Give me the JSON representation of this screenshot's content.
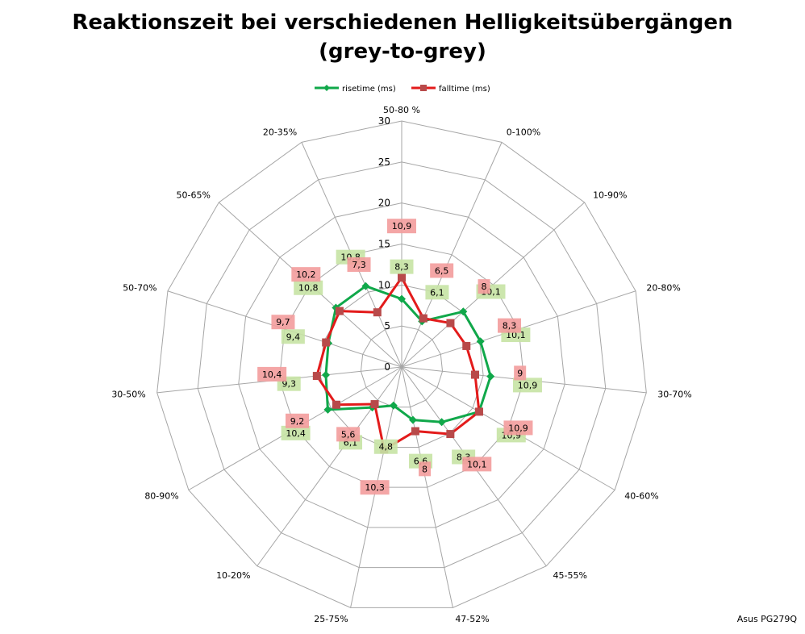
{
  "title_line1": "Reaktionszeit bei verschiedenen Helligkeitsübergängen",
  "title_line2": "(grey-to-grey)",
  "watermark": "Asus PG279Q",
  "chart_data": {
    "type": "radar",
    "categories": [
      "50-80 %",
      "0-100%",
      "10-90%",
      "20-80%",
      "30-70%",
      "40-60%",
      "45-55%",
      "47-52%",
      "25-75%",
      "10-20%",
      "80-90%",
      "30-50%",
      "50-70%",
      "50-65%",
      "20-35%"
    ],
    "series": [
      {
        "name": "risetime (ms)",
        "color": "#10a84a",
        "label_bg": "#c6e3a4",
        "values": [
          8.3,
          6.1,
          10.1,
          10.1,
          10.9,
          10.9,
          8.3,
          6.6,
          4.8,
          6.1,
          10.4,
          9.3,
          9.4,
          10.8,
          10.8
        ],
        "labels": [
          "8,3",
          "6,1",
          "10,1",
          "10,1",
          "10,9",
          "10,9",
          "8,3",
          "6,6",
          "4,8",
          "6,1",
          "10,4",
          "9,3",
          "9,4",
          "10,8",
          "10,8"
        ]
      },
      {
        "name": "falltime (ms)",
        "color": "#e31b1b",
        "label_bg": "#f39c9c",
        "values": [
          10.9,
          6.5,
          8,
          8.3,
          9,
          10.9,
          10.1,
          8,
          10.3,
          5.6,
          9.2,
          10.4,
          9.7,
          10.2,
          7.3
        ],
        "labels": [
          "10,9",
          "6,5",
          "8",
          "8,3",
          "9",
          "10,9",
          "10,1",
          "8",
          "10,3",
          "5,6",
          "9,2",
          "10,4",
          "9,7",
          "10,2",
          "7,3"
        ]
      }
    ],
    "axis_ticks": [
      "0",
      "5",
      "10",
      "15",
      "20",
      "25",
      "30"
    ],
    "axis_range": [
      0,
      30
    ],
    "legend_position": "top"
  }
}
